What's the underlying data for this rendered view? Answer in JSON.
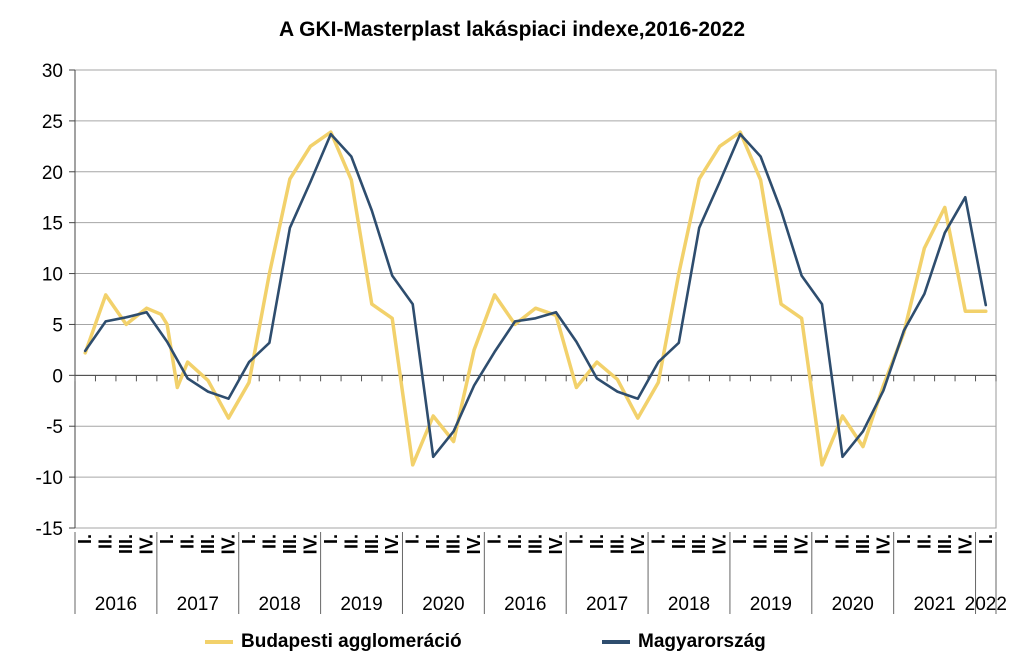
{
  "chart_data": {
    "type": "line",
    "title": "A GKI-Masterplast lakáspiaci indexe,2016-2022",
    "ylim": [
      -15,
      30
    ],
    "yticks": [
      30,
      25,
      20,
      15,
      10,
      5,
      0,
      -5,
      -10,
      -15
    ],
    "grid": true,
    "legend_position": "bottom",
    "quarter_labels": [
      "I.",
      "II.",
      "III.",
      "IV.",
      "I.",
      "II.",
      "III.",
      "IV.",
      "I.",
      "II.",
      "III.",
      "IV.",
      "I.",
      "II.",
      "III.",
      "IV.",
      "I.",
      "II.",
      "III.",
      "IV.",
      "I.",
      "II.",
      "III.",
      "IV.",
      "I.",
      "II.",
      "III.",
      "IV.",
      "I.",
      "II.",
      "III.",
      "IV.",
      "I.",
      "II.",
      "III.",
      "IV.",
      "I.",
      "II.",
      "III.",
      "IV.",
      "I.",
      "II.",
      "III.",
      "IV.",
      "I."
    ],
    "year_groups": [
      {
        "label": "2016",
        "quarters": 4
      },
      {
        "label": "2017",
        "quarters": 4
      },
      {
        "label": "2018",
        "quarters": 4
      },
      {
        "label": "2019",
        "quarters": 4
      },
      {
        "label": "2020",
        "quarters": 4
      },
      {
        "label": "2016",
        "quarters": 4
      },
      {
        "label": "2017",
        "quarters": 4
      },
      {
        "label": "2018",
        "quarters": 4
      },
      {
        "label": "2019",
        "quarters": 4
      },
      {
        "label": "2020",
        "quarters": 4
      },
      {
        "label": "2021",
        "quarters": 4
      },
      {
        "label": "2022",
        "quarters": 1
      }
    ],
    "series": [
      {
        "name": "Budapesti agglomeráció",
        "color": "#F2D16B",
        "x": [
          0,
          1,
          2,
          3,
          3.7,
          4,
          4.5,
          5,
          6,
          7,
          8,
          9,
          10,
          11,
          12,
          13,
          14,
          15,
          16,
          17,
          18,
          19,
          20,
          21,
          22,
          23,
          24,
          25,
          26,
          27,
          28,
          29,
          30,
          31,
          32,
          33,
          34,
          35,
          36,
          37,
          38,
          39,
          40,
          41,
          42,
          43,
          44
        ],
        "values": [
          2.2,
          7.9,
          5.0,
          6.6,
          6.0,
          5.0,
          -1.2,
          1.3,
          -0.5,
          -4.2,
          -0.7,
          10.0,
          19.3,
          22.5,
          23.9,
          19.2,
          7.0,
          5.6,
          -8.8,
          -4.0,
          -6.5,
          2.5,
          7.9,
          5.0,
          6.6,
          5.9,
          -1.2,
          1.3,
          -0.4,
          -4.2,
          -0.7,
          10.0,
          19.3,
          22.5,
          23.9,
          19.2,
          7.0,
          5.6,
          -8.8,
          -4.0,
          -7.0,
          -1.0,
          4.2,
          12.5,
          16.5,
          6.3,
          6.3
        ]
      },
      {
        "name": "Magyarország",
        "color": "#2E4D6E",
        "x": [
          0,
          1,
          2,
          3,
          4,
          5,
          6,
          7,
          8,
          9,
          10,
          11,
          12,
          13,
          14,
          15,
          16,
          17,
          18,
          19,
          20,
          21,
          22,
          23,
          24,
          25,
          26,
          27,
          28,
          29,
          30,
          31,
          32,
          33,
          34,
          35,
          36,
          37,
          38,
          39,
          40,
          41,
          42,
          43,
          44
        ],
        "values": [
          2.4,
          5.3,
          5.7,
          6.2,
          3.3,
          -0.3,
          -1.6,
          -2.3,
          1.3,
          3.2,
          14.5,
          19.0,
          23.7,
          21.5,
          16.2,
          9.8,
          7.0,
          -8.0,
          -5.5,
          -1.0,
          2.3,
          5.3,
          5.6,
          6.2,
          3.3,
          -0.3,
          -1.6,
          -2.3,
          1.3,
          3.2,
          14.5,
          19.0,
          23.7,
          21.5,
          16.2,
          9.8,
          7.0,
          -8.0,
          -5.5,
          -1.5,
          4.4,
          8.0,
          14.0,
          17.5,
          6.9
        ]
      }
    ]
  }
}
